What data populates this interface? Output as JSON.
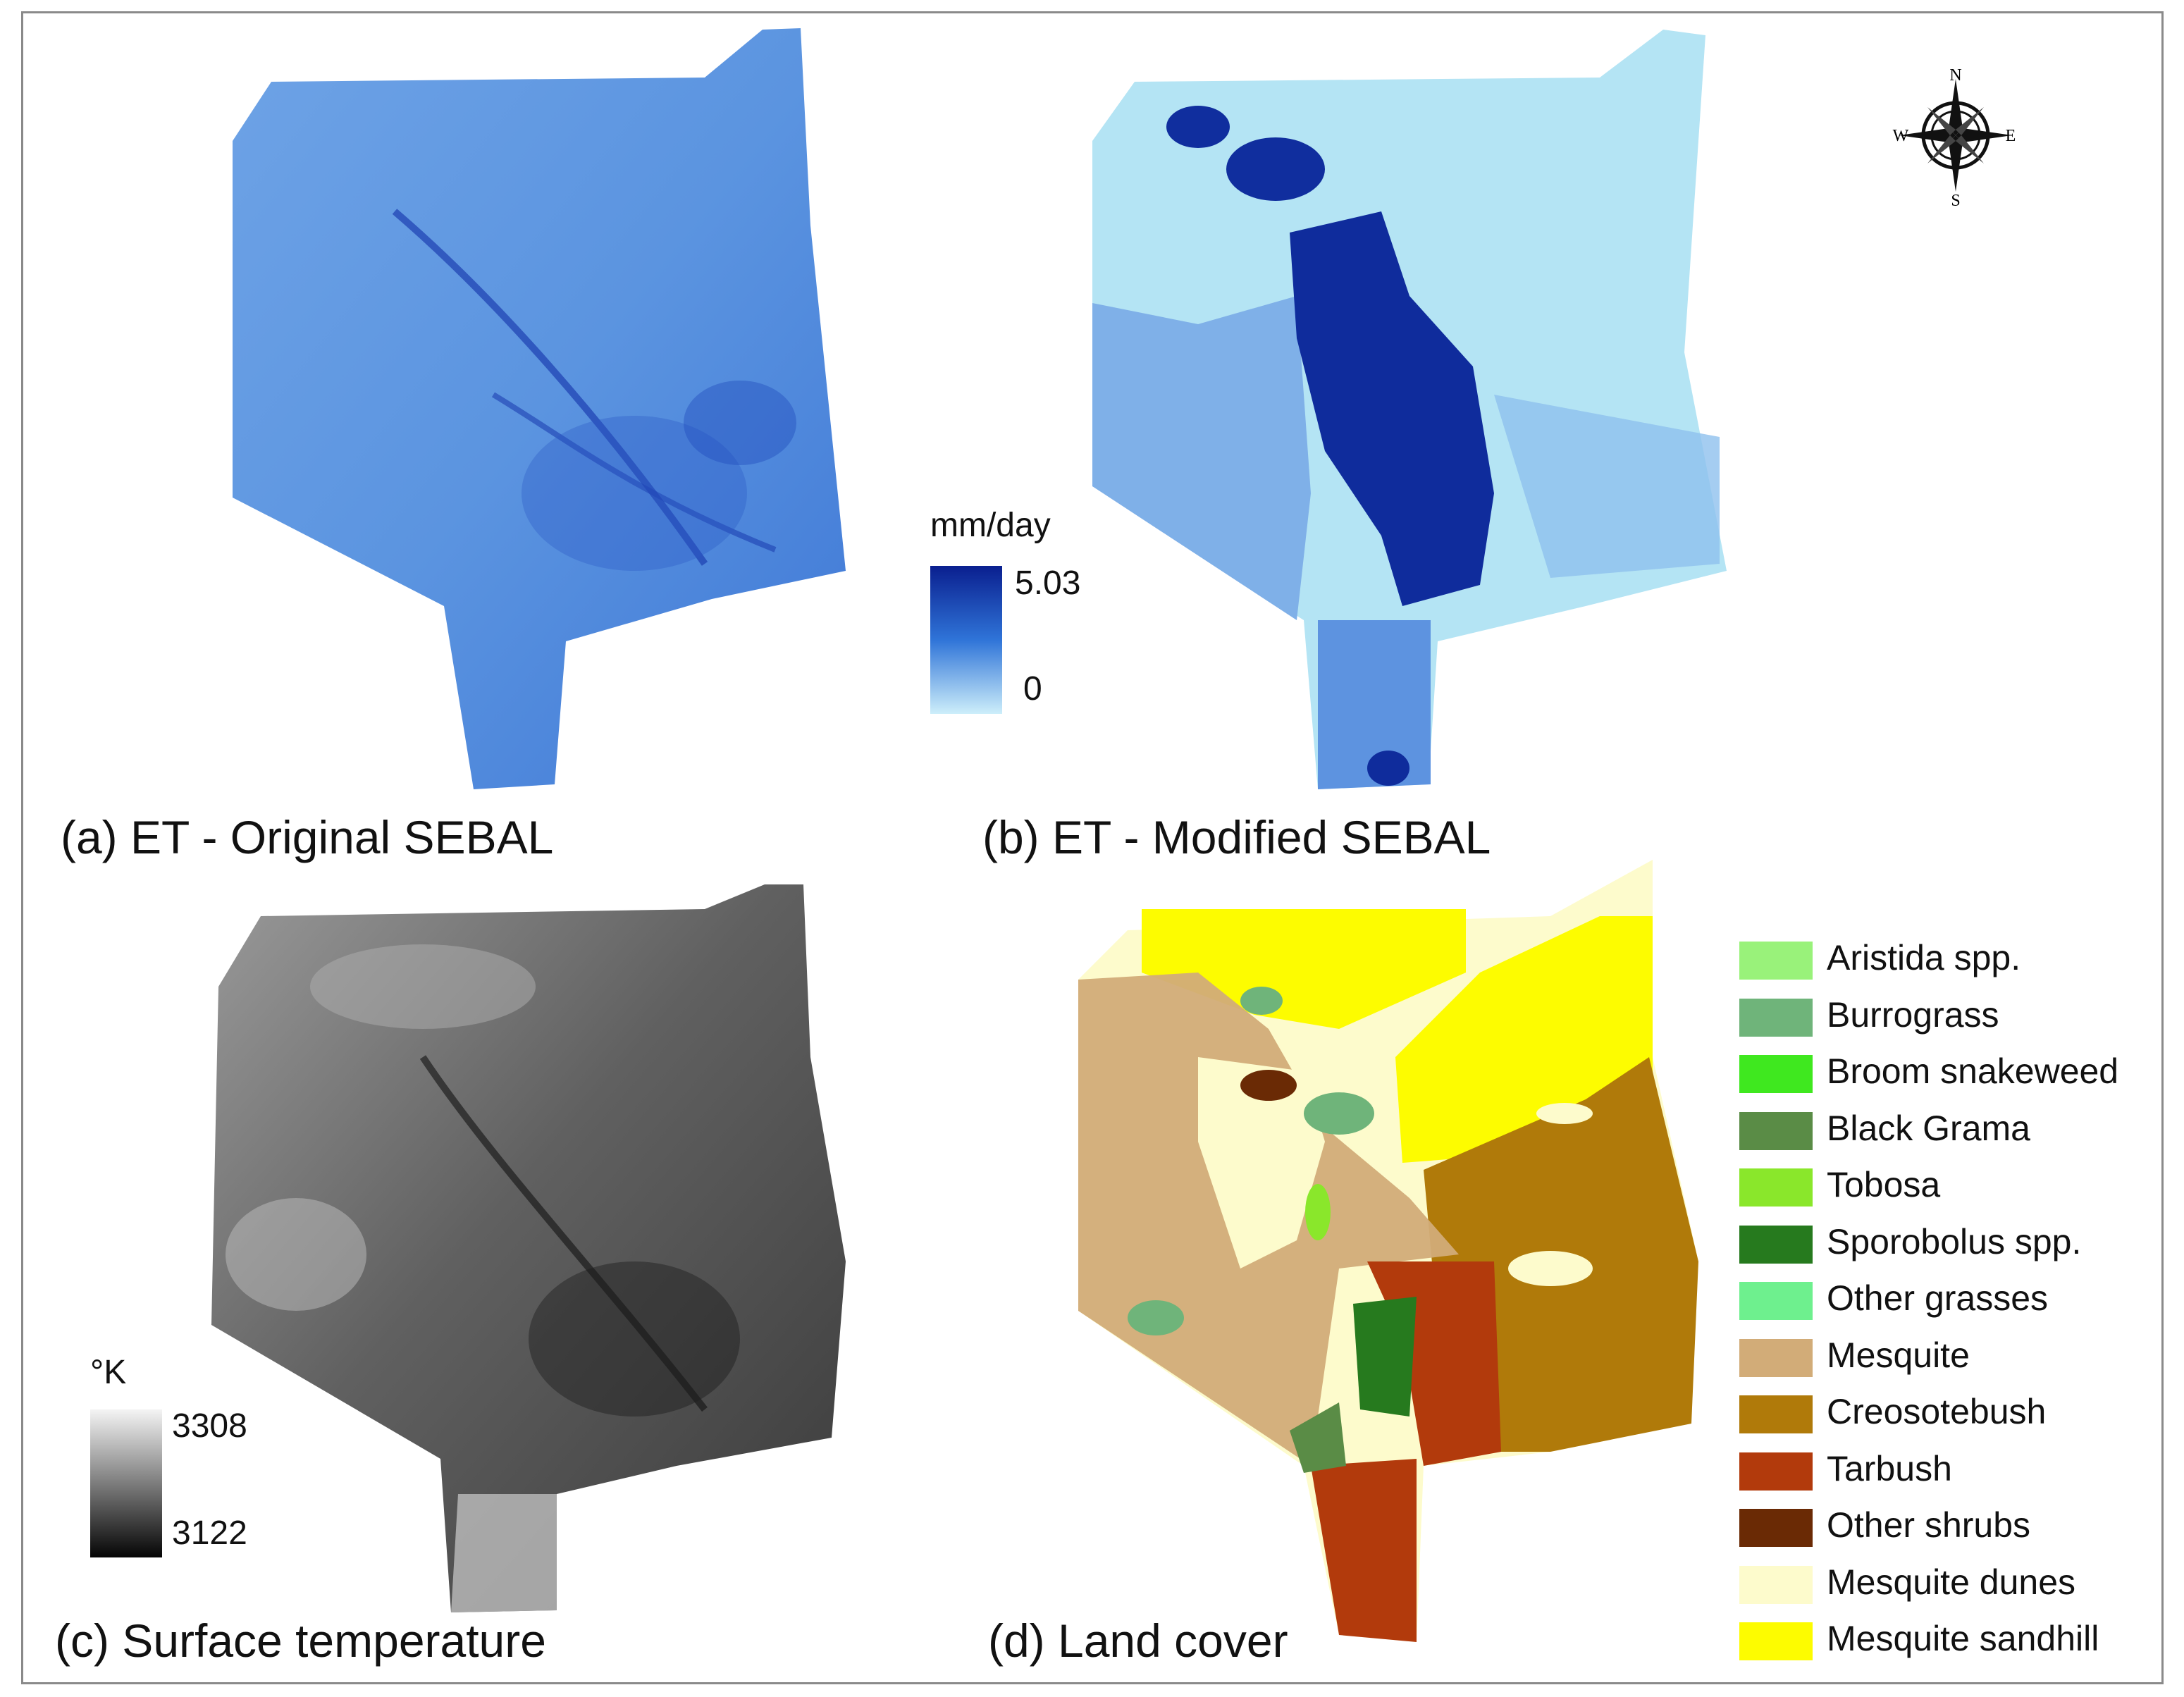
{
  "panels": [
    {
      "id": "a",
      "caption": "(a) ET - Original SEBAL"
    },
    {
      "id": "b",
      "caption": "(b) ET - Modified SEBAL"
    },
    {
      "id": "c",
      "caption": "(c) Surface temperature"
    },
    {
      "id": "d",
      "caption": "(d) Land cover"
    }
  ],
  "et_legend": {
    "unit": "mm/day",
    "max": "5.03",
    "min": "0",
    "color_high": "#0a1f8f",
    "color_mid": "#2f74d8",
    "color_low": "#cdeefa"
  },
  "temp_legend": {
    "unit": "°K",
    "max": "3308",
    "min": "3122",
    "color_high": "#f4f4f4",
    "color_low": "#050505"
  },
  "compass": {
    "n": "N",
    "s": "S",
    "e": "E",
    "w": "W"
  },
  "land_cover": [
    {
      "label": "Aristida spp.",
      "color": "#99f27a"
    },
    {
      "label": "Burrograss",
      "color": "#6fb47a"
    },
    {
      "label": "Broom snakeweed",
      "color": "#3fe81f"
    },
    {
      "label": "Black Grama",
      "color": "#5a8c46"
    },
    {
      "label": "Tobosa",
      "color": "#8ae72b"
    },
    {
      "label": "Sporobolus spp.",
      "color": "#267a1e"
    },
    {
      "label": "Other grasses",
      "color": "#6ef08e"
    },
    {
      "label": "Mesquite",
      "color": "#d2ac78"
    },
    {
      "label": "Creosotebush",
      "color": "#b07a0a"
    },
    {
      "label": "Tarbush",
      "color": "#b23a0c"
    },
    {
      "label": "Other shrubs",
      "color": "#6a2a05"
    },
    {
      "label": "Mesquite dunes",
      "color": "#fdfbcc"
    },
    {
      "label": "Mesquite sandhill",
      "color": "#fdfc00"
    }
  ]
}
